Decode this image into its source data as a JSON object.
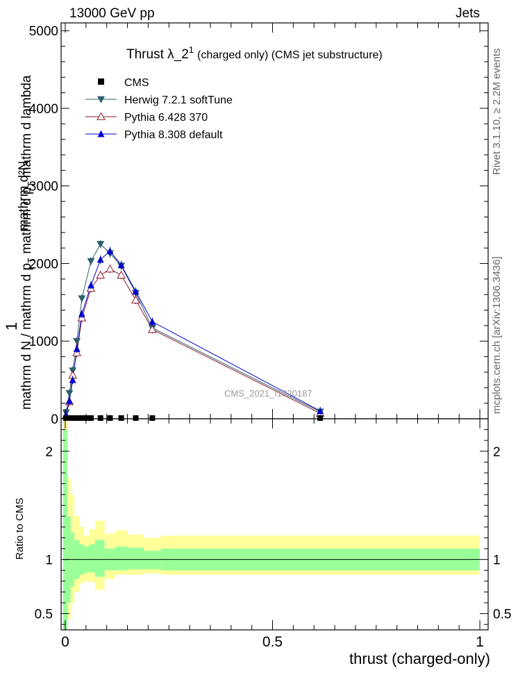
{
  "header": {
    "left": "13000 GeV pp",
    "right": "Jets",
    "side_rivet": "Rivet 3.1.10, ≥ 2.2M events",
    "side_mcplots": "mcplots.cern.ch [arXiv:1306.3436]"
  },
  "chart_data": {
    "type": "line",
    "title_main": "Thrust λ_2",
    "title_sup": "1",
    "title_rest": "(charged only) (CMS jet substructure)",
    "watermark": "CMS_2021_I1920187",
    "ylabel_main": "1 / mathrm d N / mathrm d p_T  mathrm d^2N / mathrm d p_T  mathrm d lambda",
    "ylabel_frac_num": "mathrm d²N",
    "ylabel_frac_num2": "mathrm d p",
    "ylabel_frac_num3": "T",
    "ylabel_frac_num4": "mathrm d lambda",
    "ylabel_one": "1",
    "ylabel_den": "mathrm d N / mathrm d p",
    "ylabel_den_sub": "T",
    "ylabel_ratio": "Ratio to CMS",
    "xlabel": "thrust (charged-only)",
    "xlim": [
      -0.01,
      1.02
    ],
    "ylim_main": [
      0,
      5100
    ],
    "ylim_ratio": [
      0.35,
      2.3
    ],
    "yticks_main": [
      0,
      1000,
      2000,
      3000,
      4000,
      5000
    ],
    "ytick_labels_main": [
      "0",
      "1000",
      "2000",
      "3000",
      "4000",
      "5000"
    ],
    "yticks_ratio": [
      0.5,
      1,
      2
    ],
    "ytick_labels_ratio": [
      "0.5",
      "1",
      "2"
    ],
    "xticks": [
      0,
      0.5,
      1
    ],
    "xtick_labels": [
      "0",
      "0.5",
      "1"
    ],
    "legend": [
      {
        "name": "CMS",
        "color": "#000000",
        "marker": "square"
      },
      {
        "name": "Herwig 7.2.1 softTune",
        "color": "#2a5f6a",
        "marker": "triangle-down"
      },
      {
        "name": "Pythia 6.428 370",
        "color": "#8b1a2a",
        "marker": "triangle-up-open"
      },
      {
        "name": "Pythia 8.308 default",
        "color": "#0000cc",
        "marker": "triangle-up"
      }
    ],
    "x": [
      0.002,
      0.01,
      0.018,
      0.028,
      0.04,
      0.062,
      0.085,
      0.108,
      0.135,
      0.17,
      0.21,
      0.615
    ],
    "cms_x": [
      0.002,
      0.01,
      0.018,
      0.028,
      0.04,
      0.05,
      0.062,
      0.085,
      0.108,
      0.135,
      0.17,
      0.21,
      0.615
    ],
    "cms_values": [
      0,
      0,
      0,
      0,
      0,
      0,
      0,
      0,
      0,
      0,
      0,
      0,
      0
    ],
    "series": [
      {
        "name": "Herwig 7.2.1 softTune",
        "values": [
          80,
          330,
          620,
          1000,
          1550,
          2030,
          2250,
          2130,
          1970,
          1620,
          1170,
          90
        ]
      },
      {
        "name": "Pythia 6.428 370",
        "values": [
          40,
          220,
          560,
          850,
          1300,
          1680,
          1850,
          1930,
          1850,
          1530,
          1150,
          70
        ]
      },
      {
        "name": "Pythia 8.308 default",
        "values": [
          50,
          230,
          500,
          900,
          1350,
          1720,
          2050,
          2160,
          1980,
          1640,
          1250,
          100
        ]
      }
    ],
    "band_edges": [
      -0.005,
      0.005,
      0.013,
      0.022,
      0.034,
      0.046,
      0.058,
      0.072,
      0.095,
      0.12,
      0.15,
      0.19,
      0.23,
      1.0
    ],
    "band_inner": [
      [
        0.2,
        2.2
      ],
      [
        0.6,
        1.4
      ],
      [
        0.75,
        1.25
      ],
      [
        0.82,
        1.18
      ],
      [
        0.86,
        1.14
      ],
      [
        0.88,
        1.12
      ],
      [
        0.88,
        1.14
      ],
      [
        0.84,
        1.18
      ],
      [
        0.9,
        1.1
      ],
      [
        0.9,
        1.12
      ],
      [
        0.91,
        1.11
      ],
      [
        0.91,
        1.08
      ],
      [
        0.9,
        1.1
      ]
    ],
    "band_outer": [
      [
        0.05,
        2.4
      ],
      [
        0.45,
        1.75
      ],
      [
        0.6,
        1.6
      ],
      [
        0.7,
        1.4
      ],
      [
        0.78,
        1.3
      ],
      [
        0.8,
        1.22
      ],
      [
        0.79,
        1.28
      ],
      [
        0.72,
        1.36
      ],
      [
        0.82,
        1.24
      ],
      [
        0.86,
        1.27
      ],
      [
        0.86,
        1.23
      ],
      [
        0.87,
        1.2
      ],
      [
        0.86,
        1.22
      ]
    ]
  }
}
